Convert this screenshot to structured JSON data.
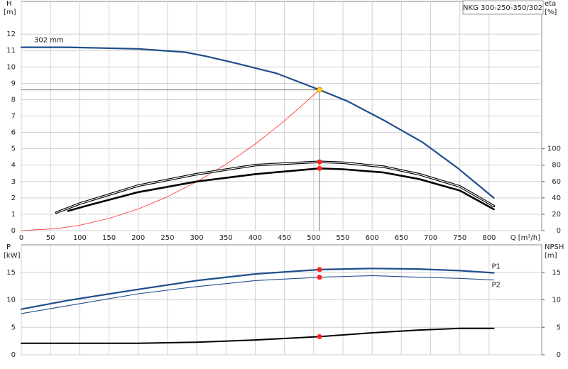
{
  "chart_data": [
    {
      "type": "line",
      "title": "NKG 300-250-350/302",
      "x_label": "Q [m³/h]",
      "y_label": "H",
      "y_unit": "[m]",
      "y2_label": "eta",
      "y2_unit": "[%]",
      "xlim": [
        0,
        890
      ],
      "ylim": [
        0,
        14
      ],
      "y2lim": [
        0,
        280
      ],
      "xticks": [
        0,
        50,
        100,
        150,
        200,
        250,
        300,
        350,
        400,
        450,
        500,
        550,
        600,
        650,
        700,
        750,
        800
      ],
      "xtick_labels": true,
      "yticks": [
        0,
        1,
        2,
        3,
        4,
        5,
        6,
        7,
        8,
        9,
        10,
        11,
        12
      ],
      "y2ticks": [
        0,
        20,
        40,
        60,
        80,
        100
      ],
      "grid": true,
      "series": [
        {
          "name": "302 mm",
          "name_at": "start",
          "color": "#1f4e8c",
          "width": 2.2,
          "x": [
            0,
            80,
            200,
            280,
            316,
            370,
            437,
            510,
            558,
            622,
            686,
            747,
            808
          ],
          "values": [
            11.2,
            11.2,
            11.1,
            10.9,
            10.65,
            10.2,
            9.6,
            8.6,
            7.9,
            6.7,
            5.4,
            3.8,
            2.0
          ]
        },
        {
          "color": "#ff2a2a",
          "width": 0.8,
          "x": [
            0,
            60,
            100,
            150,
            200,
            250,
            300,
            350,
            400,
            450,
            510
          ],
          "values": [
            0,
            0.12,
            0.33,
            0.74,
            1.32,
            2.07,
            2.98,
            4.05,
            5.29,
            6.7,
            8.6
          ]
        },
        {
          "axis": "y2",
          "color": "#000000",
          "width": 3.4,
          "double": true,
          "x": [
            60,
            100,
            200,
            300,
            400,
            510,
            550,
            620,
            680,
            750,
            808
          ],
          "values": [
            22,
            33,
            55,
            69,
            80,
            84,
            83,
            78,
            69,
            54,
            30
          ]
        },
        {
          "axis": "y2",
          "color": "#000000",
          "width": 2.6,
          "x": [
            80,
            120,
            200,
            300,
            400,
            510,
            550,
            620,
            680,
            750,
            808
          ],
          "values": [
            24,
            32,
            47,
            60,
            69,
            76,
            75,
            71,
            63,
            49,
            26
          ]
        }
      ],
      "markers": [
        {
          "x": 510,
          "y": 8.6,
          "color": "#ffd21f",
          "guides": true
        },
        {
          "x": 510,
          "y": 84,
          "axis": "y2",
          "color": "#ff2020"
        },
        {
          "x": 510,
          "y": 76,
          "axis": "y2",
          "color": "#ff2020"
        }
      ]
    },
    {
      "type": "line",
      "y_label": "P",
      "y_unit": "[kW]",
      "y2_label": "NPSH",
      "y2_unit": "[m]",
      "xlim": [
        0,
        890
      ],
      "ylim": [
        0,
        20
      ],
      "y2lim": [
        0,
        20
      ],
      "xticks": [
        0,
        50,
        100,
        150,
        200,
        250,
        300,
        350,
        400,
        450,
        500,
        550,
        600,
        650,
        700,
        750,
        800
      ],
      "xtick_labels": false,
      "yticks": [
        0,
        5,
        10,
        15
      ],
      "y2ticks": [
        0,
        5,
        10,
        15
      ],
      "grid": true,
      "series": [
        {
          "name": "P1",
          "name_at": "end-above",
          "color": "#1f4e8c",
          "width": 2.2,
          "x": [
            0,
            80,
            200,
            300,
            400,
            510,
            600,
            680,
            750,
            808
          ],
          "values": [
            8.3,
            9.9,
            11.9,
            13.5,
            14.7,
            15.5,
            15.7,
            15.6,
            15.3,
            14.9
          ]
        },
        {
          "name": "P2",
          "name_at": "end-below",
          "color": "#1f4e8c",
          "width": 1.1,
          "x": [
            0,
            100,
            200,
            300,
            400,
            510,
            600,
            680,
            750,
            808
          ],
          "values": [
            7.5,
            9.3,
            11.1,
            12.4,
            13.5,
            14.1,
            14.4,
            14.1,
            13.9,
            13.6
          ]
        },
        {
          "axis": "y2",
          "color": "#000000",
          "width": 2,
          "x": [
            0,
            80,
            200,
            300,
            400,
            510,
            600,
            680,
            750,
            808
          ],
          "values": [
            2.1,
            2.1,
            2.1,
            2.3,
            2.7,
            3.3,
            4.0,
            4.5,
            4.8,
            4.8
          ]
        }
      ],
      "markers": [
        {
          "x": 510,
          "y": 15.5,
          "color": "#ff2020"
        },
        {
          "x": 510,
          "y": 14.1,
          "color": "#ff2020"
        },
        {
          "x": 510,
          "y": 3.3,
          "axis": "y2",
          "color": "#ff2020"
        }
      ]
    }
  ]
}
